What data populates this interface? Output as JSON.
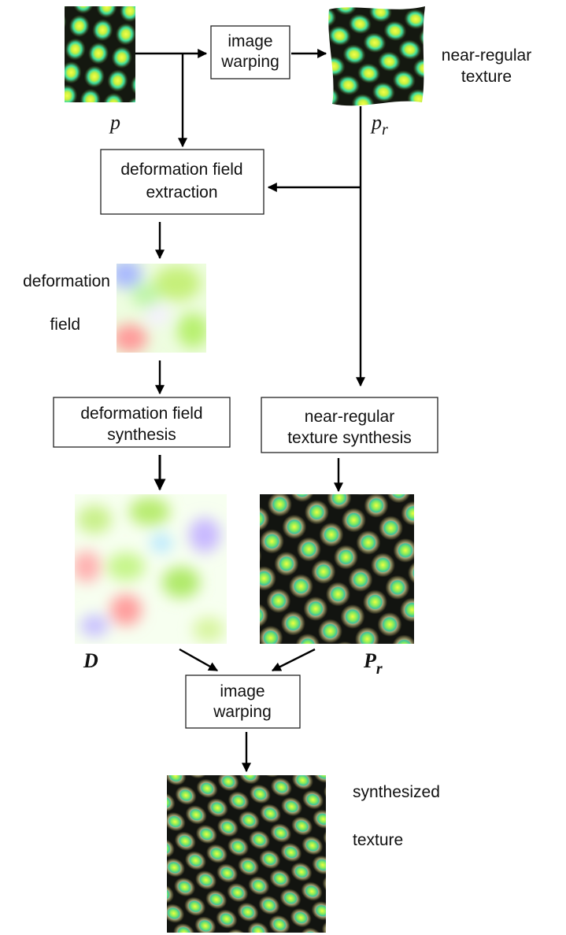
{
  "boxes": [
    {
      "lines": [
        "image",
        "warping"
      ]
    },
    {
      "lines": [
        "deformation field",
        "extraction"
      ]
    },
    {
      "lines": [
        "deformation field",
        "synthesis"
      ]
    },
    {
      "lines": [
        "near-regular",
        "texture synthesis"
      ]
    },
    {
      "lines": [
        "image",
        "warping"
      ]
    }
  ],
  "captions": [
    {
      "lines": [
        "near-regular",
        "texture"
      ]
    },
    {
      "lines": [
        "deformation",
        "field"
      ]
    },
    {
      "lines": [
        "synthesized",
        "texture"
      ]
    }
  ],
  "image_labels": [
    {
      "base": "p"
    },
    {
      "base": "p",
      "sub": "r"
    },
    {
      "base": "D"
    },
    {
      "base": "P",
      "sub": "r"
    }
  ]
}
